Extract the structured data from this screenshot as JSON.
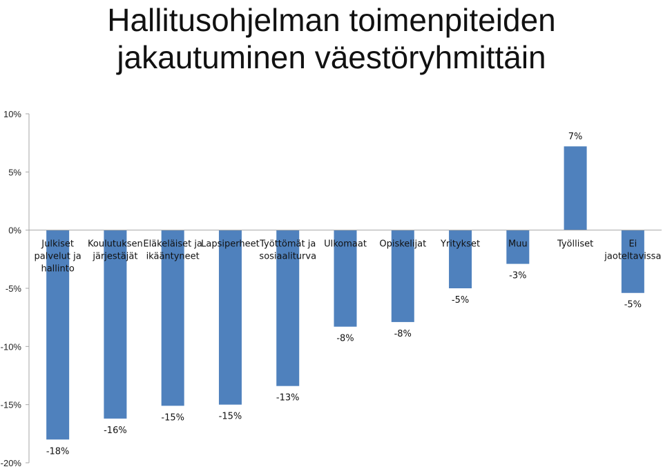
{
  "title_line1": "Hallitusohjelman toimenpiteiden",
  "title_line2": "jakautuminen väestöryhmittäin",
  "chart_data": {
    "type": "bar",
    "title": "Hallitusohjelman toimenpiteiden jakautuminen väestöryhmittäin",
    "categories": [
      [
        "Julkiset",
        "palvelut ja",
        "hallinto"
      ],
      [
        "Koulutuksen",
        "järjestäjät"
      ],
      [
        "Eläkeläiset ja",
        "ikääntyneet"
      ],
      [
        "Lapsiperheet"
      ],
      [
        "Työttömät ja",
        "sosiaaliturva"
      ],
      [
        "Ulkomaat"
      ],
      [
        "Opiskelijat"
      ],
      [
        "Yritykset"
      ],
      [
        "Muu"
      ],
      [
        "Työlliset"
      ],
      [
        "Ei",
        "jaoteltavissa"
      ]
    ],
    "values": [
      -18,
      -16.2,
      -15.1,
      -15.0,
      -13.4,
      -8.3,
      -7.9,
      -5.0,
      -2.9,
      7.2,
      -5.4
    ],
    "data_labels": [
      "-18%",
      "-16%",
      "-15%",
      "-15%",
      "-13%",
      "-8%",
      "-8%",
      "-5%",
      "-3%",
      "7%",
      "-5%"
    ],
    "y_ticks": [
      10,
      5,
      0,
      -5,
      -10,
      -15,
      -20
    ],
    "y_tick_labels": [
      "10%",
      "5%",
      "0%",
      "-5%",
      "-10%",
      "-15%",
      "-20%"
    ],
    "ylim": [
      -20,
      10
    ],
    "grid": false,
    "legend": "none",
    "bar_color": "#4f81bd",
    "axis_color": "#a6a6a6"
  }
}
